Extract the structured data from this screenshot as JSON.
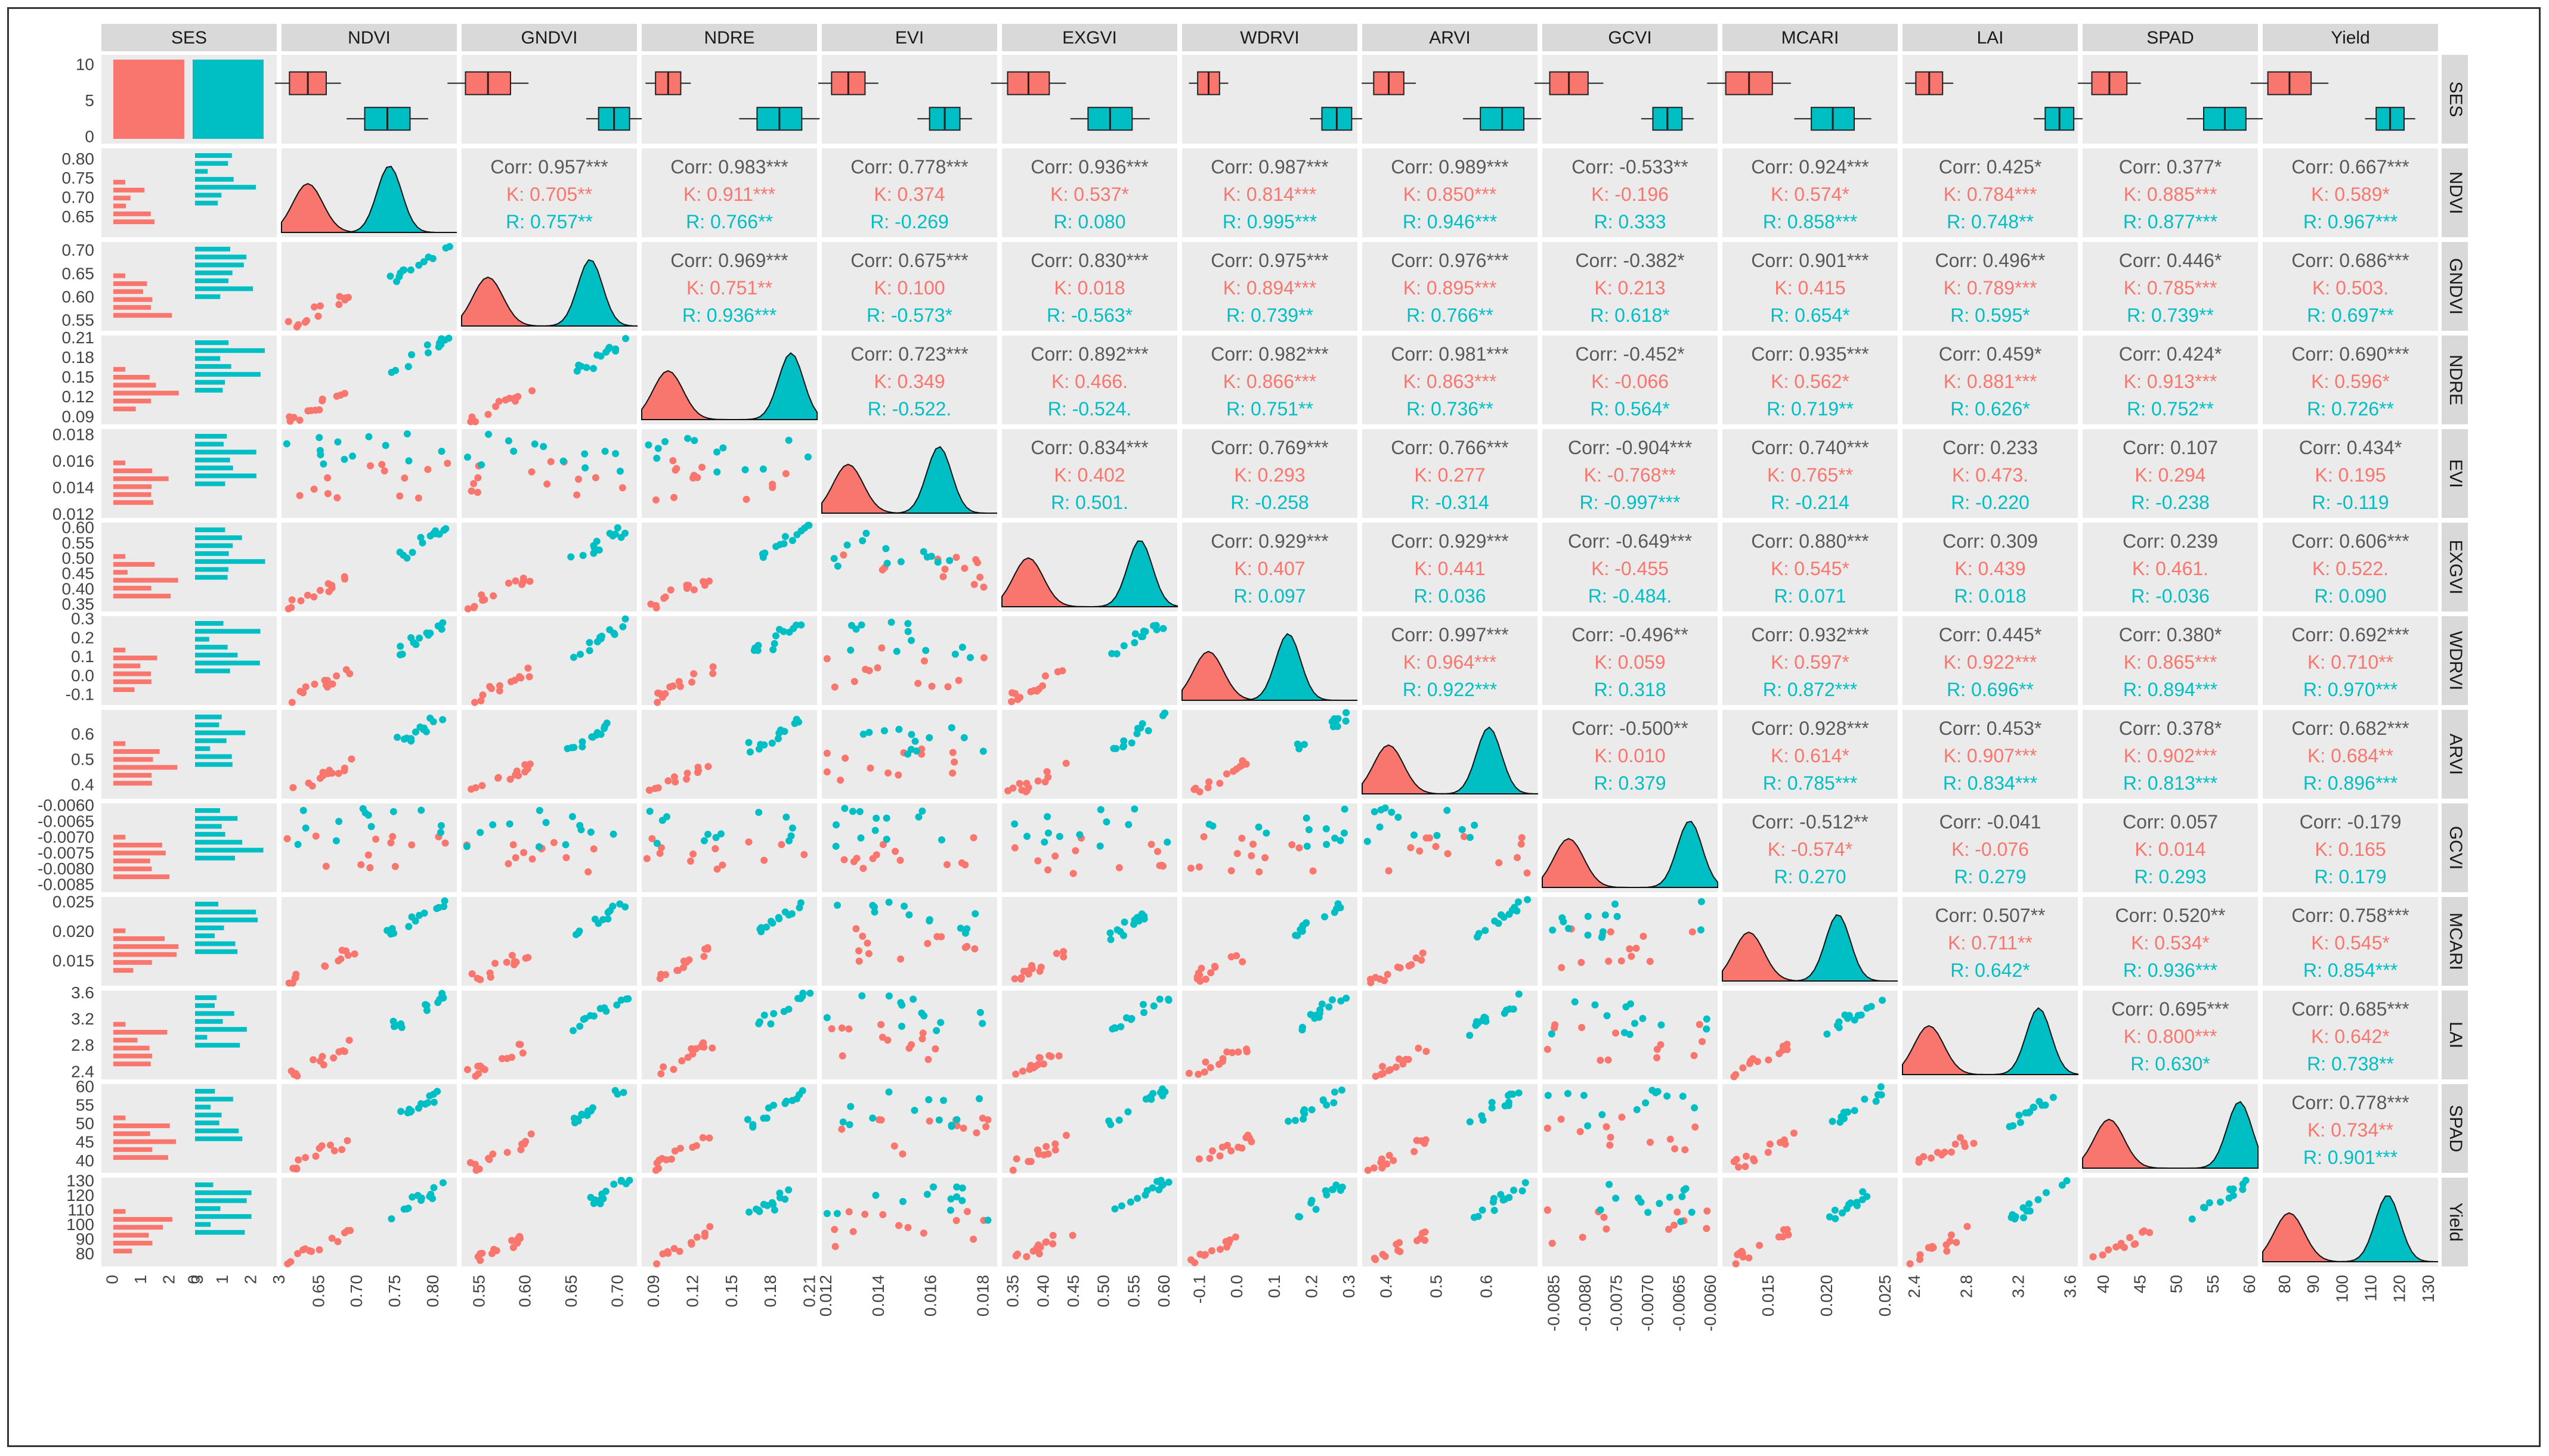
{
  "chart_data": {
    "type": "scatter-matrix",
    "title": "",
    "variables": [
      "SES",
      "NDVI",
      "GNDVI",
      "NDRE",
      "EVI",
      "EXGVI",
      "WDRVI",
      "ARVI",
      "GCVI",
      "MCARI",
      "LAI",
      "SPAD",
      "Yield"
    ],
    "groups": [
      {
        "name": "K",
        "color": "#F8766D"
      },
      {
        "name": "R",
        "color": "#00BFC4"
      }
    ],
    "axis_ticks": {
      "NDVI": [
        "0.65",
        "0.70",
        "0.75",
        "0.80"
      ],
      "GNDVI": [
        "0.55",
        "0.60",
        "0.65",
        "0.70"
      ],
      "NDRE": [
        "0.09",
        "0.12",
        "0.15",
        "0.18",
        "0.21"
      ],
      "EVI": [
        "0.012",
        "0.014",
        "0.016",
        "0.018"
      ],
      "EXGVI": [
        "0.35",
        "0.40",
        "0.45",
        "0.50",
        "0.55",
        "0.60"
      ],
      "WDRVI": [
        "-0.1",
        "0.0",
        "0.1",
        "0.2",
        "0.3"
      ],
      "ARVI": [
        "0.4",
        "0.5",
        "0.6"
      ],
      "GCVI": [
        "-0.0085",
        "-0.0080",
        "-0.0075",
        "-0.0070",
        "-0.0065",
        "-0.0060"
      ],
      "MCARI": [
        "0.015",
        "0.020",
        "0.025"
      ],
      "LAI": [
        "2.4",
        "2.8",
        "3.2",
        "3.6"
      ],
      "SPAD": [
        "40",
        "45",
        "50",
        "55",
        "60"
      ],
      "Yield": [
        "80",
        "90",
        "100",
        "110",
        "120",
        "130"
      ]
    },
    "ses_count_ticks": [
      "0",
      "5",
      "10"
    ],
    "ses_histogram_ticks": [
      "0",
      "1",
      "2",
      "3"
    ],
    "var_ranges": {
      "NDVI": [
        0.6,
        0.83
      ],
      "GNDVI": [
        0.53,
        0.72
      ],
      "NDRE": [
        0.08,
        0.215
      ],
      "EVI": [
        0.0118,
        0.0185
      ],
      "EXGVI": [
        0.33,
        0.62
      ],
      "WDRVI": [
        -0.15,
        0.32
      ],
      "ARVI": [
        0.35,
        0.7
      ],
      "GCVI": [
        -0.0087,
        -0.0059
      ],
      "MCARI": [
        0.011,
        0.026
      ],
      "LAI": [
        2.3,
        3.65
      ],
      "SPAD": [
        37,
        61
      ],
      "Yield": [
        72,
        133
      ]
    },
    "correlations": [
      {
        "row": "NDVI",
        "col": "GNDVI",
        "corr": "Corr: 0.957***",
        "k": "K: 0.705**",
        "r": "R: 0.757**"
      },
      {
        "row": "NDVI",
        "col": "NDRE",
        "corr": "Corr: 0.983***",
        "k": "K: 0.911***",
        "r": "R: 0.766**"
      },
      {
        "row": "NDVI",
        "col": "EVI",
        "corr": "Corr: 0.778***",
        "k": "K: 0.374",
        "r": "R: -0.269"
      },
      {
        "row": "NDVI",
        "col": "EXGVI",
        "corr": "Corr: 0.936***",
        "k": "K: 0.537*",
        "r": "R: 0.080"
      },
      {
        "row": "NDVI",
        "col": "WDRVI",
        "corr": "Corr: 0.987***",
        "k": "K: 0.814***",
        "r": "R: 0.995***"
      },
      {
        "row": "NDVI",
        "col": "ARVI",
        "corr": "Corr: 0.989***",
        "k": "K: 0.850***",
        "r": "R: 0.946***"
      },
      {
        "row": "NDVI",
        "col": "GCVI",
        "corr": "Corr: -0.533**",
        "k": "K: -0.196",
        "r": "R: 0.333"
      },
      {
        "row": "NDVI",
        "col": "MCARI",
        "corr": "Corr: 0.924***",
        "k": "K: 0.574*",
        "r": "R: 0.858***"
      },
      {
        "row": "NDVI",
        "col": "LAI",
        "corr": "Corr: 0.425*",
        "k": "K: 0.784***",
        "r": "R: 0.748**"
      },
      {
        "row": "NDVI",
        "col": "SPAD",
        "corr": "Corr: 0.377*",
        "k": "K: 0.885***",
        "r": "R: 0.877***"
      },
      {
        "row": "NDVI",
        "col": "Yield",
        "corr": "Corr: 0.667***",
        "k": "K: 0.589*",
        "r": "R: 0.967***"
      },
      {
        "row": "GNDVI",
        "col": "NDRE",
        "corr": "Corr: 0.969***",
        "k": "K: 0.751**",
        "r": "R: 0.936***"
      },
      {
        "row": "GNDVI",
        "col": "EVI",
        "corr": "Corr: 0.675***",
        "k": "K: 0.100",
        "r": "R: -0.573*"
      },
      {
        "row": "GNDVI",
        "col": "EXGVI",
        "corr": "Corr: 0.830***",
        "k": "K: 0.018",
        "r": "R: -0.563*"
      },
      {
        "row": "GNDVI",
        "col": "WDRVI",
        "corr": "Corr: 0.975***",
        "k": "K: 0.894***",
        "r": "R: 0.739**"
      },
      {
        "row": "GNDVI",
        "col": "ARVI",
        "corr": "Corr: 0.976***",
        "k": "K: 0.895***",
        "r": "R: 0.766**"
      },
      {
        "row": "GNDVI",
        "col": "GCVI",
        "corr": "Corr: -0.382*",
        "k": "K: 0.213",
        "r": "R: 0.618*"
      },
      {
        "row": "GNDVI",
        "col": "MCARI",
        "corr": "Corr: 0.901***",
        "k": "K: 0.415",
        "r": "R: 0.654*"
      },
      {
        "row": "GNDVI",
        "col": "LAI",
        "corr": "Corr: 0.496**",
        "k": "K: 0.789***",
        "r": "R: 0.595*"
      },
      {
        "row": "GNDVI",
        "col": "SPAD",
        "corr": "Corr: 0.446*",
        "k": "K: 0.785***",
        "r": "R: 0.739**"
      },
      {
        "row": "GNDVI",
        "col": "Yield",
        "corr": "Corr: 0.686***",
        "k": "K: 0.503.",
        "r": "R: 0.697**"
      },
      {
        "row": "NDRE",
        "col": "EVI",
        "corr": "Corr: 0.723***",
        "k": "K: 0.349",
        "r": "R: -0.522."
      },
      {
        "row": "NDRE",
        "col": "EXGVI",
        "corr": "Corr: 0.892***",
        "k": "K: 0.466.",
        "r": "R: -0.524."
      },
      {
        "row": "NDRE",
        "col": "WDRVI",
        "corr": "Corr: 0.982***",
        "k": "K: 0.866***",
        "r": "R: 0.751**"
      },
      {
        "row": "NDRE",
        "col": "ARVI",
        "corr": "Corr: 0.981***",
        "k": "K: 0.863***",
        "r": "R: 0.736**"
      },
      {
        "row": "NDRE",
        "col": "GCVI",
        "corr": "Corr: -0.452*",
        "k": "K: -0.066",
        "r": "R: 0.564*"
      },
      {
        "row": "NDRE",
        "col": "MCARI",
        "corr": "Corr: 0.935***",
        "k": "K: 0.562*",
        "r": "R: 0.719**"
      },
      {
        "row": "NDRE",
        "col": "LAI",
        "corr": "Corr: 0.459*",
        "k": "K: 0.881***",
        "r": "R: 0.626*"
      },
      {
        "row": "NDRE",
        "col": "SPAD",
        "corr": "Corr: 0.424*",
        "k": "K: 0.913***",
        "r": "R: 0.752**"
      },
      {
        "row": "NDRE",
        "col": "Yield",
        "corr": "Corr: 0.690***",
        "k": "K: 0.596*",
        "r": "R: 0.726**"
      },
      {
        "row": "EVI",
        "col": "EXGVI",
        "corr": "Corr: 0.834***",
        "k": "K: 0.402",
        "r": "R: 0.501."
      },
      {
        "row": "EVI",
        "col": "WDRVI",
        "corr": "Corr: 0.769***",
        "k": "K: 0.293",
        "r": "R: -0.258"
      },
      {
        "row": "EVI",
        "col": "ARVI",
        "corr": "Corr: 0.766***",
        "k": "K: 0.277",
        "r": "R: -0.314"
      },
      {
        "row": "EVI",
        "col": "GCVI",
        "corr": "Corr: -0.904***",
        "k": "K: -0.768**",
        "r": "R: -0.997***"
      },
      {
        "row": "EVI",
        "col": "MCARI",
        "corr": "Corr: 0.740***",
        "k": "K: 0.765**",
        "r": "R: -0.214"
      },
      {
        "row": "EVI",
        "col": "LAI",
        "corr": "Corr: 0.233",
        "k": "K: 0.473.",
        "r": "R: -0.220"
      },
      {
        "row": "EVI",
        "col": "SPAD",
        "corr": "Corr: 0.107",
        "k": "K: 0.294",
        "r": "R: -0.238"
      },
      {
        "row": "EVI",
        "col": "Yield",
        "corr": "Corr: 0.434*",
        "k": "K: 0.195",
        "r": "R: -0.119"
      },
      {
        "row": "EXGVI",
        "col": "WDRVI",
        "corr": "Corr: 0.929***",
        "k": "K: 0.407",
        "r": "R: 0.097"
      },
      {
        "row": "EXGVI",
        "col": "ARVI",
        "corr": "Corr: 0.929***",
        "k": "K: 0.441",
        "r": "R: 0.036"
      },
      {
        "row": "EXGVI",
        "col": "GCVI",
        "corr": "Corr: -0.649***",
        "k": "K: -0.455",
        "r": "R: -0.484."
      },
      {
        "row": "EXGVI",
        "col": "MCARI",
        "corr": "Corr: 0.880***",
        "k": "K: 0.545*",
        "r": "R: 0.071"
      },
      {
        "row": "EXGVI",
        "col": "LAI",
        "corr": "Corr: 0.309",
        "k": "K: 0.439",
        "r": "R: 0.018"
      },
      {
        "row": "EXGVI",
        "col": "SPAD",
        "corr": "Corr: 0.239",
        "k": "K: 0.461.",
        "r": "R: -0.036"
      },
      {
        "row": "EXGVI",
        "col": "Yield",
        "corr": "Corr: 0.606***",
        "k": "K: 0.522.",
        "r": "R: 0.090"
      },
      {
        "row": "WDRVI",
        "col": "ARVI",
        "corr": "Corr: 0.997***",
        "k": "K: 0.964***",
        "r": "R: 0.922***"
      },
      {
        "row": "WDRVI",
        "col": "GCVI",
        "corr": "Corr: -0.496**",
        "k": "K: 0.059",
        "r": "R: 0.318"
      },
      {
        "row": "WDRVI",
        "col": "MCARI",
        "corr": "Corr: 0.932***",
        "k": "K: 0.597*",
        "r": "R: 0.872***"
      },
      {
        "row": "WDRVI",
        "col": "LAI",
        "corr": "Corr: 0.445*",
        "k": "K: 0.922***",
        "r": "R: 0.696**"
      },
      {
        "row": "WDRVI",
        "col": "SPAD",
        "corr": "Corr: 0.380*",
        "k": "K: 0.865***",
        "r": "R: 0.894***"
      },
      {
        "row": "WDRVI",
        "col": "Yield",
        "corr": "Corr: 0.692***",
        "k": "K: 0.710**",
        "r": "R: 0.970***"
      },
      {
        "row": "ARVI",
        "col": "GCVI",
        "corr": "Corr: -0.500**",
        "k": "K: 0.010",
        "r": "R: 0.379"
      },
      {
        "row": "ARVI",
        "col": "MCARI",
        "corr": "Corr: 0.928***",
        "k": "K: 0.614*",
        "r": "R: 0.785***"
      },
      {
        "row": "ARVI",
        "col": "LAI",
        "corr": "Corr: 0.453*",
        "k": "K: 0.907***",
        "r": "R: 0.834***"
      },
      {
        "row": "ARVI",
        "col": "SPAD",
        "corr": "Corr: 0.378*",
        "k": "K: 0.902***",
        "r": "R: 0.813***"
      },
      {
        "row": "ARVI",
        "col": "Yield",
        "corr": "Corr: 0.682***",
        "k": "K: 0.684**",
        "r": "R: 0.896***"
      },
      {
        "row": "GCVI",
        "col": "MCARI",
        "corr": "Corr: -0.512**",
        "k": "K: -0.574*",
        "r": "R: 0.270"
      },
      {
        "row": "GCVI",
        "col": "LAI",
        "corr": "Corr: -0.041",
        "k": "K: -0.076",
        "r": "R: 0.279"
      },
      {
        "row": "GCVI",
        "col": "SPAD",
        "corr": "Corr: 0.057",
        "k": "K: 0.014",
        "r": "R: 0.293"
      },
      {
        "row": "GCVI",
        "col": "Yield",
        "corr": "Corr: -0.179",
        "k": "K: 0.165",
        "r": "R: 0.179"
      },
      {
        "row": "MCARI",
        "col": "LAI",
        "corr": "Corr: 0.507**",
        "k": "K: 0.711**",
        "r": "R: 0.642*"
      },
      {
        "row": "MCARI",
        "col": "SPAD",
        "corr": "Corr: 0.520**",
        "k": "K: 0.534*",
        "r": "R: 0.936***"
      },
      {
        "row": "MCARI",
        "col": "Yield",
        "corr": "Corr: 0.758***",
        "k": "K: 0.545*",
        "r": "R: 0.854***"
      },
      {
        "row": "LAI",
        "col": "SPAD",
        "corr": "Corr: 0.695***",
        "k": "K: 0.800***",
        "r": "R: 0.630*"
      },
      {
        "row": "LAI",
        "col": "Yield",
        "corr": "Corr: 0.685***",
        "k": "K: 0.642*",
        "r": "R: 0.738**"
      },
      {
        "row": "SPAD",
        "col": "Yield",
        "corr": "Corr: 0.778***",
        "k": "K: 0.734**",
        "r": "R: 0.901***"
      }
    ]
  }
}
